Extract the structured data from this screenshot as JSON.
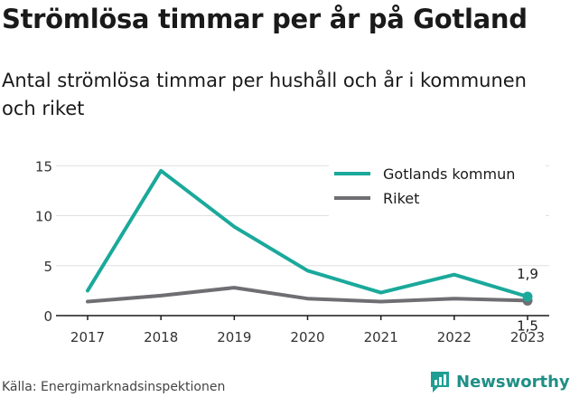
{
  "title": "Strömlösa timmar per år på Gotland",
  "subtitle": "Antal strömlösa timmar per hushåll och år i kommunen och riket",
  "source": "Källa: Energimarknadsinspektionen",
  "brand": {
    "name": "Newsworthy",
    "color": "#1f9e94"
  },
  "chart_data": {
    "type": "line",
    "x": [
      "2017",
      "2018",
      "2019",
      "2020",
      "2021",
      "2022",
      "2023"
    ],
    "series": [
      {
        "name": "Gotlands kommun",
        "color": "#1aa99b",
        "values": [
          2.5,
          14.5,
          8.9,
          4.5,
          2.3,
          4.1,
          1.9
        ],
        "end_label": "1,9"
      },
      {
        "name": "Riket",
        "color": "#6e6e73",
        "values": [
          1.4,
          2.0,
          2.8,
          1.7,
          1.4,
          1.7,
          1.5
        ],
        "end_label": "1,5"
      }
    ],
    "yticks": [
      "0",
      "5",
      "10",
      "15"
    ],
    "ylim": [
      0,
      16
    ],
    "grid": true,
    "legend": "top-right",
    "xlabel": "",
    "ylabel": ""
  }
}
